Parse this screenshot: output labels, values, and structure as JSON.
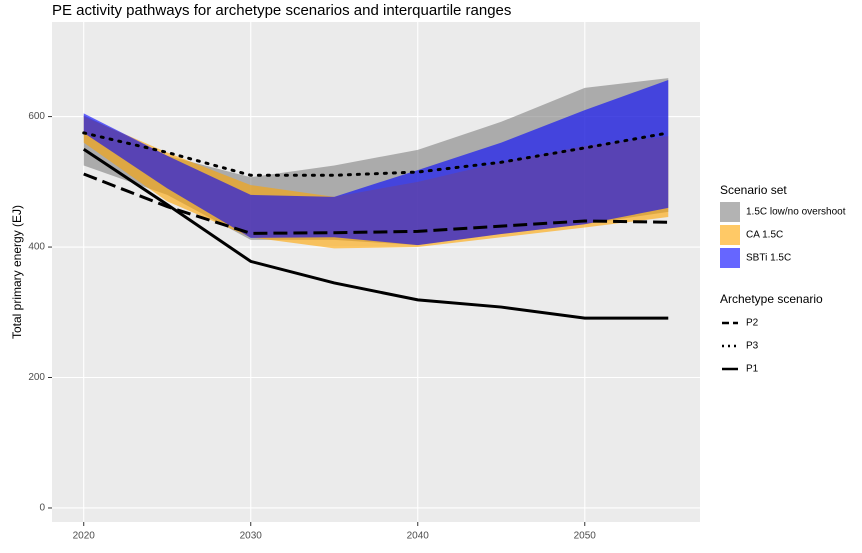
{
  "chart_data": {
    "type": "line",
    "title": "PE activity pathways for archetype scenarios and interquartile ranges",
    "y_label": "Total primary energy (EJ)",
    "x": [
      2020,
      2025,
      2030,
      2035,
      2040,
      2045,
      2050,
      2055
    ],
    "xlim": [
      2018.1,
      2056.9
    ],
    "xticks": [
      2020,
      2030,
      2040,
      2050
    ],
    "ylim": [
      -21.5,
      745
    ],
    "yticks": [
      0,
      200,
      400,
      600
    ],
    "grid": true,
    "band_alpha": 0.6,
    "band_legend_title": "Scenario set",
    "bands": [
      {
        "name": "1.5C low/no overshoot",
        "color": "#808080",
        "lower": [
          525,
          480,
          411,
          411,
          403,
          420,
          435,
          454
        ],
        "upper": [
          602,
          540,
          507,
          525,
          549,
          592,
          644,
          659
        ]
      },
      {
        "name": "CA 1.5C",
        "color": "#ffa500",
        "lower": [
          560,
          470,
          415,
          398,
          400,
          415,
          430,
          446
        ],
        "upper": [
          600,
          545,
          495,
          477,
          500,
          530,
          555,
          570
        ]
      },
      {
        "name": "SBTi 1.5C",
        "color": "#0000ff",
        "lower": [
          575,
          490,
          414,
          415,
          403,
          420,
          435,
          460
        ],
        "upper": [
          605,
          540,
          480,
          477,
          518,
          560,
          610,
          656
        ]
      }
    ],
    "line_legend_title": "Archetype scenario",
    "series": [
      {
        "name": "P2",
        "color": "#000000",
        "linetype": "dashed",
        "values": [
          512,
          462,
          421,
          422,
          424,
          432,
          440,
          438
        ]
      },
      {
        "name": "P3",
        "color": "#000000",
        "linetype": "dotted",
        "values": [
          575,
          545,
          510,
          510,
          515,
          530,
          552,
          575
        ]
      },
      {
        "name": "P1",
        "color": "#000000",
        "linetype": "solid",
        "values": [
          550,
          465,
          378,
          345,
          319,
          308,
          291,
          291
        ]
      }
    ]
  }
}
